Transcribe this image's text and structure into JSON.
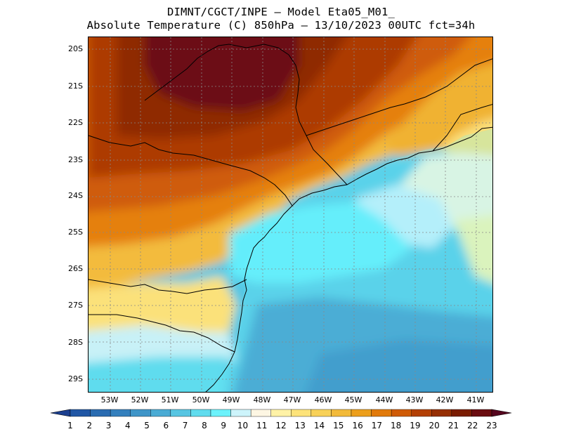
{
  "title": {
    "line1": "DIMNT/CGCT/INPE –  Model Eta05_M01_",
    "line2": "Absolute Temperature (C) 850hPa –  13/10/2023 00UTC fct=34h"
  },
  "map": {
    "lat_labels": [
      "20S",
      "21S",
      "22S",
      "23S",
      "24S",
      "25S",
      "26S",
      "27S",
      "28S",
      "29S"
    ],
    "lon_labels": [
      "53W",
      "52W",
      "51W",
      "50W",
      "49W",
      "48W",
      "47W",
      "46W",
      "45W",
      "44W",
      "43W",
      "42W",
      "41W"
    ]
  },
  "colorbar": {
    "labels": [
      "1",
      "2",
      "3",
      "4",
      "5",
      "6",
      "7",
      "8",
      "9",
      "10",
      "11",
      "12",
      "13",
      "14",
      "15",
      "16",
      "17",
      "18",
      "19",
      "20",
      "21",
      "22",
      "23"
    ],
    "colors": [
      "#1b3f8f",
      "#2157a5",
      "#2a6cb1",
      "#3480bd",
      "#3f95c8",
      "#4aabd4",
      "#57c5e2",
      "#60dcee",
      "#6cf2fb",
      "#cdf4fb",
      "#fdf6e3",
      "#fff2a6",
      "#fde37a",
      "#f8d158",
      "#f2ba3a",
      "#ec9f1c",
      "#e17a0b",
      "#cf5b06",
      "#b34004",
      "#962f03",
      "#7a1c02",
      "#6a0c10",
      "#55051e"
    ]
  }
}
